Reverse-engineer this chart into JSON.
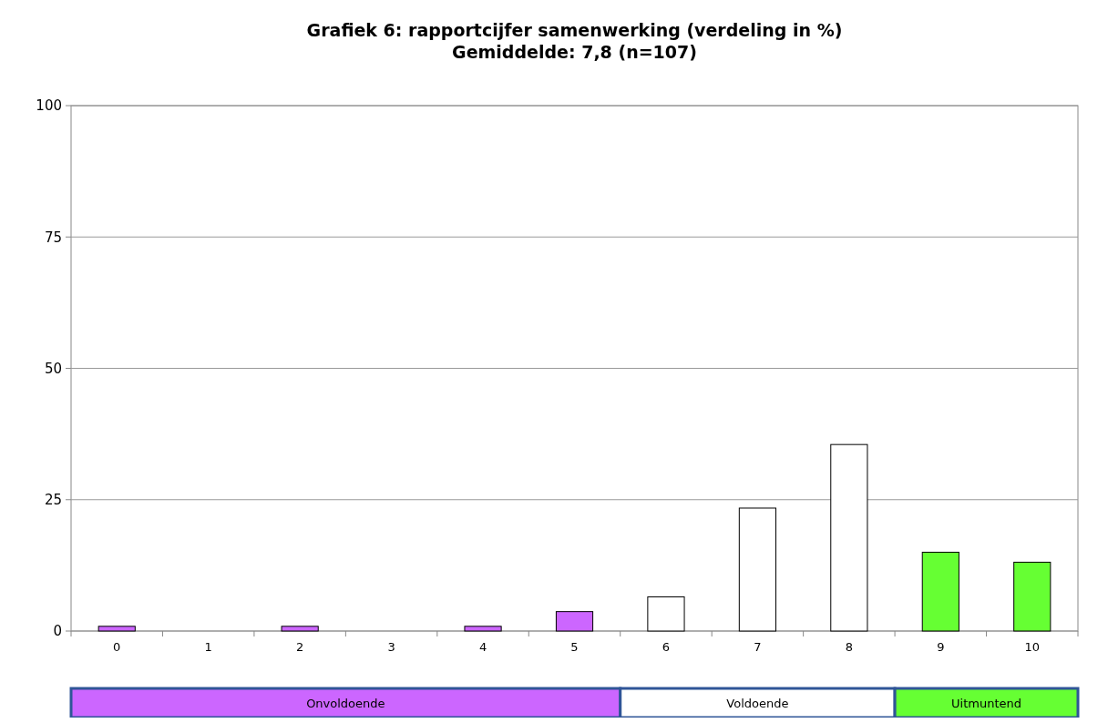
{
  "chart_data": {
    "type": "bar",
    "title": "Grafiek 6: rapportcijfer samenwerking (verdeling in %)",
    "subtitle": "Gemiddelde: 7,8  (n=107)",
    "categories": [
      "0",
      "1",
      "2",
      "3",
      "4",
      "5",
      "6",
      "7",
      "8",
      "9",
      "10"
    ],
    "values": [
      0.9,
      0,
      0.9,
      0,
      0.9,
      3.7,
      6.5,
      23.4,
      35.5,
      15.0,
      13.1
    ],
    "colors": [
      "#cc66ff",
      "#cc66ff",
      "#cc66ff",
      "#cc66ff",
      "#cc66ff",
      "#cc66ff",
      "#ffffff",
      "#ffffff",
      "#ffffff",
      "#66ff33",
      "#66ff33"
    ],
    "ylim": [
      0,
      100
    ],
    "yticks": [
      0,
      25,
      50,
      75,
      100
    ],
    "grid": "y",
    "annotations": [
      "Onvoldoende",
      "Voldoende",
      "Uitmuntend"
    ]
  }
}
